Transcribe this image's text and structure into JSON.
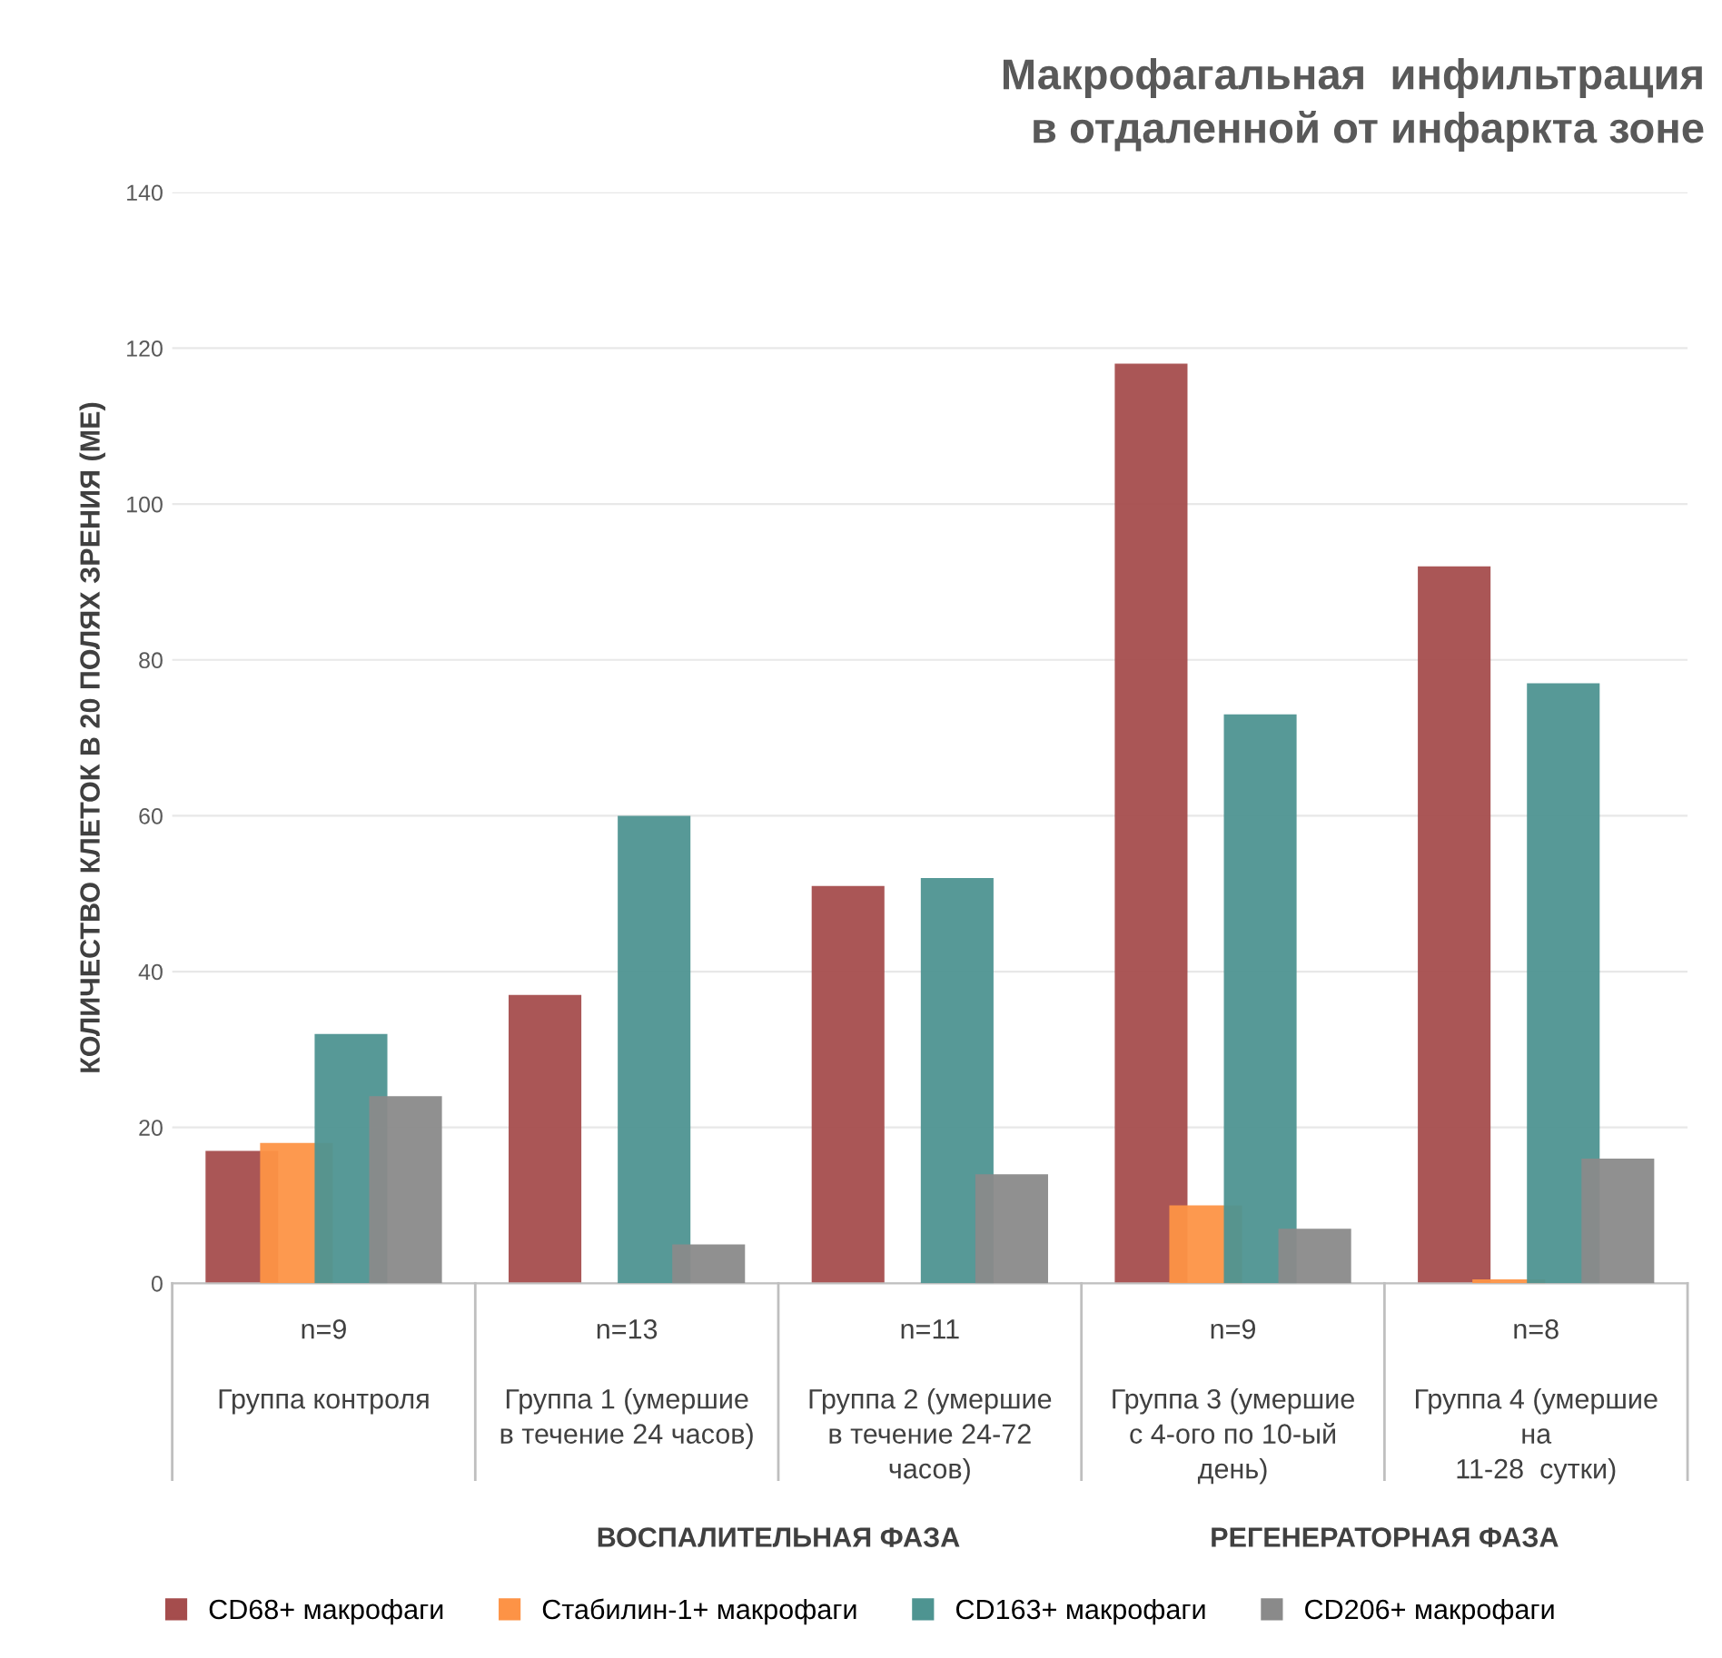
{
  "chart_data": {
    "type": "bar",
    "title": "Макрофагальная  инфильтрация\nв отдаленной от инфаркта зоне",
    "ylabel": "КОЛИЧЕСТВО КЛЕТОК В 20 ПОЛЯХ ЗРЕНИЯ (МЕ)",
    "categories": [
      "n=9\n\nГруппа контроля",
      "n=13\n\nГруппа 1 (умершие\nв течение 24 часов)",
      "n=11\n\nГруппа 2 (умершие\nв течение 24-72\nчасов)",
      "n=9\n\nГруппа 3 (умершие\nс 4-ого по 10-ый\nдень)",
      "n=8\n\nГруппа 4 (умершие\nна\n11-28  сутки)"
    ],
    "series": [
      {
        "name": "CD68+ макрофаги",
        "color": "#a54d4d",
        "values": [
          17,
          37,
          51,
          118,
          92
        ]
      },
      {
        "name": "Стабилин-1+ макрофаги",
        "color": "#fd9346",
        "values": [
          18,
          0,
          0,
          10,
          0.5
        ]
      },
      {
        "name": "CD163+ макрофаги",
        "color": "#4e9491",
        "values": [
          32,
          60,
          52,
          73,
          77
        ]
      },
      {
        "name": "CD206+ макрофаги",
        "color": "#8a8a8a",
        "values": [
          24,
          5,
          14,
          7,
          16
        ]
      }
    ],
    "annotations": [
      "ВОСПАЛИТЕЛЬНАЯ ФАЗА",
      "РЕГЕНЕРАТОРНАЯ ФАЗА"
    ],
    "ylim": [
      0,
      140
    ],
    "yticks": [
      0,
      20,
      40,
      60,
      80,
      100,
      120,
      140
    ],
    "grid": "y",
    "legend": "bottom"
  }
}
